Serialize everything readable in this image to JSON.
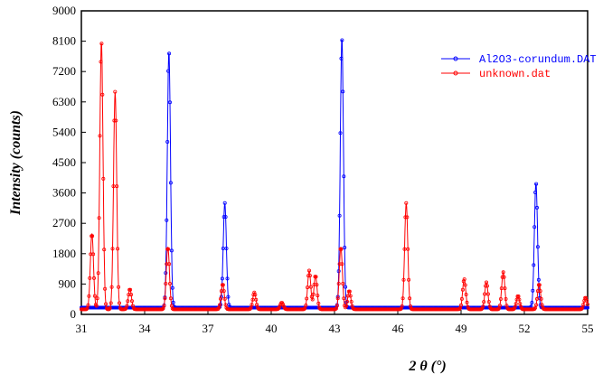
{
  "chart_data": {
    "type": "line",
    "xlabel": "2 θ (°)",
    "ylabel": "Intensity (counts)",
    "xlim": [
      31,
      55
    ],
    "ylim": [
      0,
      9000
    ],
    "x_ticks": [
      31,
      34,
      37,
      40,
      43,
      46,
      49,
      52,
      55
    ],
    "y_ticks": [
      0,
      900,
      1800,
      2700,
      3600,
      4500,
      5400,
      6300,
      7200,
      8100,
      9000
    ],
    "grid": false,
    "legend_position": "top-right",
    "series": [
      {
        "name": "Al2O3-corundum.DAT",
        "color": "#0000ff",
        "baseline": 200,
        "peaks": [
          {
            "x": 35.15,
            "y": 7800
          },
          {
            "x": 37.8,
            "y": 3300
          },
          {
            "x": 43.35,
            "y": 8200
          },
          {
            "x": 52.55,
            "y": 3900
          }
        ]
      },
      {
        "name": "unknown.dat",
        "color": "#ff0000",
        "baseline": 150,
        "peaks": [
          {
            "x": 31.5,
            "y": 2400
          },
          {
            "x": 31.95,
            "y": 8100
          },
          {
            "x": 32.6,
            "y": 6600
          },
          {
            "x": 33.3,
            "y": 750
          },
          {
            "x": 35.1,
            "y": 2000
          },
          {
            "x": 37.7,
            "y": 900
          },
          {
            "x": 39.2,
            "y": 650
          },
          {
            "x": 40.5,
            "y": 350
          },
          {
            "x": 41.8,
            "y": 1300
          },
          {
            "x": 42.1,
            "y": 1150
          },
          {
            "x": 43.3,
            "y": 2000
          },
          {
            "x": 43.7,
            "y": 700
          },
          {
            "x": 46.4,
            "y": 3300
          },
          {
            "x": 49.15,
            "y": 1050
          },
          {
            "x": 50.2,
            "y": 950
          },
          {
            "x": 51.0,
            "y": 1250
          },
          {
            "x": 51.7,
            "y": 550
          },
          {
            "x": 52.7,
            "y": 900
          },
          {
            "x": 54.9,
            "y": 500
          }
        ]
      }
    ]
  }
}
